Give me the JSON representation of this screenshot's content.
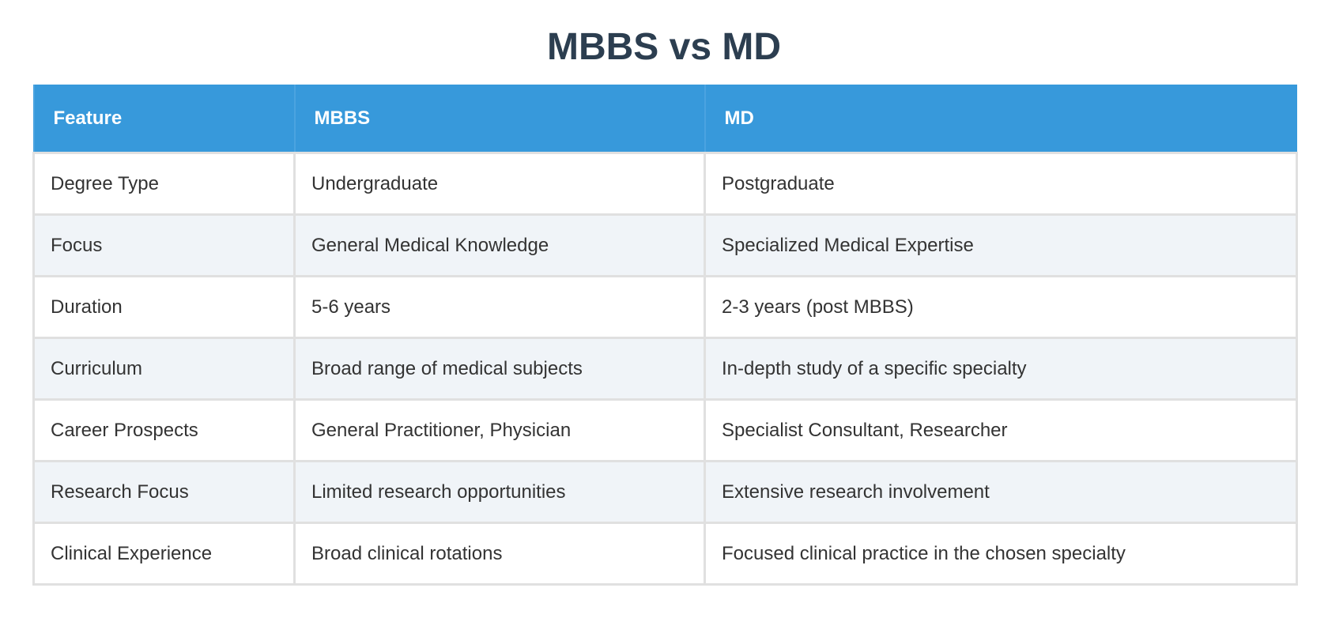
{
  "title": "MBBS vs MD",
  "table": {
    "headers": [
      "Feature",
      "MBBS",
      "MD"
    ],
    "rows": [
      [
        "Degree Type",
        "Undergraduate",
        "Postgraduate"
      ],
      [
        "Focus",
        "General Medical Knowledge",
        "Specialized Medical Expertise"
      ],
      [
        "Duration",
        "5-6 years",
        "2-3 years (post MBBS)"
      ],
      [
        "Curriculum",
        "Broad range of medical subjects",
        "In-depth study of a specific specialty"
      ],
      [
        "Career Prospects",
        "General Practitioner, Physician",
        "Specialist Consultant, Researcher"
      ],
      [
        "Research Focus",
        "Limited research opportunities",
        "Extensive research involvement"
      ],
      [
        "Clinical Experience",
        "Broad clinical rotations",
        "Focused clinical practice in the chosen specialty"
      ]
    ]
  }
}
